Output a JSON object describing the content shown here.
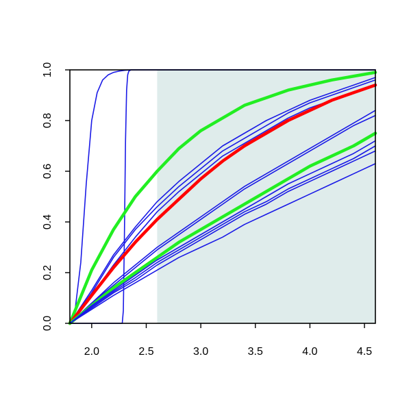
{
  "chart_data": {
    "type": "line",
    "title": "",
    "xlabel": "",
    "ylabel": "",
    "xlim": [
      1.8,
      4.6
    ],
    "ylim": [
      0.0,
      1.0
    ],
    "grid": false,
    "legend": "none",
    "x_ticks": [
      2.0,
      2.5,
      3.0,
      3.5,
      4.0,
      4.5
    ],
    "x_tick_labels": [
      "2.0",
      "2.5",
      "3.0",
      "3.5",
      "4.0",
      "4.5"
    ],
    "y_ticks": [
      0.0,
      0.2,
      0.4,
      0.6,
      0.8,
      1.0
    ],
    "y_tick_labels": [
      "0.0",
      "0.2",
      "0.4",
      "0.6",
      "0.8",
      "1.0"
    ],
    "shaded_region": {
      "x_from": 2.6,
      "x_to": 4.6,
      "color": "#dfeceb"
    },
    "colors": {
      "blue": "#1a1ae6",
      "red": "#ff0000",
      "green": "#22ee22",
      "frame": "#000000"
    },
    "series": [
      {
        "color": "blue",
        "width": 1.6,
        "x": [
          1.8,
          1.85,
          1.9,
          1.95,
          2.0,
          2.05,
          2.1,
          2.15,
          2.2,
          2.25,
          2.3,
          2.35,
          2.5,
          4.6
        ],
        "y": [
          0.0,
          0.06,
          0.24,
          0.55,
          0.8,
          0.91,
          0.96,
          0.98,
          0.99,
          0.995,
          0.998,
          1.0,
          1.0,
          1.0
        ]
      },
      {
        "color": "blue",
        "width": 1.6,
        "x": [
          1.8,
          2.0,
          2.2,
          2.28,
          2.29,
          2.3,
          2.31,
          2.32,
          2.33,
          2.34,
          2.36,
          2.5,
          4.6
        ],
        "y": [
          0.0,
          0.0,
          0.0,
          0.0,
          0.05,
          0.35,
          0.72,
          0.92,
          0.98,
          0.995,
          1.0,
          1.0,
          1.0
        ]
      },
      {
        "color": "green",
        "width": 4.5,
        "x": [
          1.8,
          2.0,
          2.2,
          2.4,
          2.6,
          2.8,
          3.0,
          3.2,
          3.4,
          3.6,
          3.8,
          4.0,
          4.2,
          4.4,
          4.6
        ],
        "y": [
          0.0,
          0.21,
          0.37,
          0.5,
          0.6,
          0.69,
          0.76,
          0.81,
          0.86,
          0.89,
          0.92,
          0.94,
          0.96,
          0.975,
          0.99
        ]
      },
      {
        "color": "blue",
        "width": 1.6,
        "x": [
          1.8,
          2.0,
          2.2,
          2.4,
          2.6,
          2.8,
          3.0,
          3.2,
          3.4,
          3.6,
          3.8,
          4.0,
          4.2,
          4.4,
          4.6
        ],
        "y": [
          0.0,
          0.13,
          0.27,
          0.38,
          0.48,
          0.56,
          0.63,
          0.7,
          0.75,
          0.8,
          0.84,
          0.88,
          0.91,
          0.94,
          0.97
        ]
      },
      {
        "color": "blue",
        "width": 1.6,
        "x": [
          1.8,
          2.0,
          2.2,
          2.4,
          2.6,
          2.8,
          3.0,
          3.2,
          3.4,
          3.6,
          3.8,
          4.0,
          4.2,
          4.4,
          4.6
        ],
        "y": [
          0.0,
          0.12,
          0.26,
          0.37,
          0.46,
          0.54,
          0.61,
          0.68,
          0.73,
          0.78,
          0.83,
          0.87,
          0.9,
          0.93,
          0.96
        ]
      },
      {
        "color": "blue",
        "width": 1.6,
        "x": [
          1.8,
          2.0,
          2.2,
          2.4,
          2.6,
          2.8,
          3.0,
          3.2,
          3.4,
          3.6,
          3.8,
          4.0,
          4.2,
          4.4,
          4.6
        ],
        "y": [
          0.0,
          0.11,
          0.23,
          0.34,
          0.44,
          0.52,
          0.59,
          0.66,
          0.71,
          0.76,
          0.81,
          0.85,
          0.88,
          0.91,
          0.94
        ]
      },
      {
        "color": "red",
        "width": 4.5,
        "x": [
          1.8,
          2.0,
          2.2,
          2.4,
          2.6,
          2.8,
          3.0,
          3.2,
          3.4,
          3.6,
          3.8,
          4.0,
          4.2,
          4.4,
          4.6
        ],
        "y": [
          0.0,
          0.11,
          0.22,
          0.32,
          0.41,
          0.49,
          0.57,
          0.64,
          0.7,
          0.75,
          0.8,
          0.84,
          0.88,
          0.91,
          0.94
        ]
      },
      {
        "color": "blue",
        "width": 1.6,
        "x": [
          1.8,
          2.0,
          2.2,
          2.4,
          2.6,
          2.8,
          3.0,
          3.2,
          3.4,
          3.6,
          3.8,
          4.0,
          4.2,
          4.4,
          4.6
        ],
        "y": [
          0.0,
          0.08,
          0.16,
          0.23,
          0.3,
          0.36,
          0.42,
          0.48,
          0.54,
          0.59,
          0.64,
          0.69,
          0.74,
          0.79,
          0.84
        ]
      },
      {
        "color": "blue",
        "width": 1.6,
        "x": [
          1.8,
          2.0,
          2.2,
          2.4,
          2.6,
          2.8,
          3.0,
          3.2,
          3.4,
          3.6,
          3.8,
          4.0,
          4.2,
          4.4,
          4.6
        ],
        "y": [
          0.0,
          0.08,
          0.15,
          0.22,
          0.29,
          0.35,
          0.41,
          0.47,
          0.53,
          0.58,
          0.63,
          0.68,
          0.73,
          0.78,
          0.82
        ]
      },
      {
        "color": "green",
        "width": 4.5,
        "x": [
          1.8,
          2.0,
          2.2,
          2.4,
          2.6,
          2.8,
          3.0,
          3.2,
          3.4,
          3.6,
          3.8,
          4.0,
          4.2,
          4.4,
          4.6
        ],
        "y": [
          0.0,
          0.07,
          0.14,
          0.2,
          0.26,
          0.32,
          0.37,
          0.42,
          0.47,
          0.52,
          0.57,
          0.62,
          0.66,
          0.7,
          0.75
        ]
      },
      {
        "color": "blue",
        "width": 1.6,
        "x": [
          1.8,
          2.0,
          2.2,
          2.4,
          2.6,
          2.8,
          3.0,
          3.2,
          3.4,
          3.6,
          3.8,
          4.0,
          4.2,
          4.4,
          4.6
        ],
        "y": [
          0.0,
          0.07,
          0.13,
          0.19,
          0.25,
          0.3,
          0.35,
          0.4,
          0.45,
          0.5,
          0.55,
          0.59,
          0.63,
          0.67,
          0.72
        ]
      },
      {
        "color": "blue",
        "width": 1.6,
        "x": [
          1.8,
          2.0,
          2.2,
          2.4,
          2.6,
          2.8,
          3.0,
          3.2,
          3.4,
          3.6,
          3.8,
          4.0,
          4.2,
          4.4,
          4.6
        ],
        "y": [
          0.0,
          0.065,
          0.125,
          0.18,
          0.24,
          0.29,
          0.34,
          0.39,
          0.44,
          0.48,
          0.53,
          0.57,
          0.61,
          0.65,
          0.7
        ]
      },
      {
        "color": "blue",
        "width": 1.6,
        "x": [
          1.8,
          2.0,
          2.2,
          2.4,
          2.6,
          2.8,
          3.0,
          3.2,
          3.4,
          3.6,
          3.8,
          4.0,
          4.2,
          4.4,
          4.6
        ],
        "y": [
          0.0,
          0.06,
          0.12,
          0.17,
          0.23,
          0.28,
          0.33,
          0.38,
          0.43,
          0.47,
          0.52,
          0.56,
          0.6,
          0.64,
          0.68
        ]
      },
      {
        "color": "blue",
        "width": 1.6,
        "x": [
          1.8,
          2.0,
          2.2,
          2.4,
          2.6,
          2.8,
          3.0,
          3.2,
          3.4,
          3.6,
          3.8,
          4.0,
          4.2,
          4.4,
          4.6
        ],
        "y": [
          0.0,
          0.055,
          0.11,
          0.16,
          0.21,
          0.26,
          0.3,
          0.34,
          0.39,
          0.43,
          0.47,
          0.51,
          0.55,
          0.59,
          0.63
        ]
      }
    ]
  }
}
